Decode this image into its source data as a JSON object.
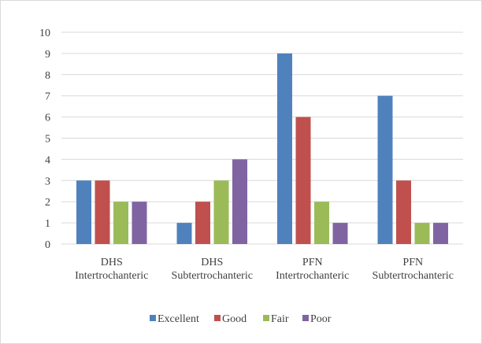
{
  "chart_data": {
    "type": "bar",
    "title": "",
    "xlabel": "",
    "ylabel": "",
    "ylim": [
      0,
      10
    ],
    "yticks": [
      0,
      1,
      2,
      3,
      4,
      5,
      6,
      7,
      8,
      9,
      10
    ],
    "grid": true,
    "legend_position": "bottom",
    "categories": [
      [
        "DHS",
        "Intertrochanteric"
      ],
      [
        "DHS",
        "Subtertrochanteric"
      ],
      [
        "PFN",
        "Intertrochanteric"
      ],
      [
        "PFN",
        "Subtertrochanteric"
      ]
    ],
    "series": [
      {
        "name": "Excellent",
        "color": "#4f81bd",
        "values": [
          3,
          1,
          9,
          7
        ]
      },
      {
        "name": "Good",
        "color": "#c0504d",
        "values": [
          3,
          2,
          6,
          3
        ]
      },
      {
        "name": "Fair",
        "color": "#9bbb59",
        "values": [
          2,
          3,
          2,
          1
        ]
      },
      {
        "name": "Poor",
        "color": "#8064a2",
        "values": [
          2,
          4,
          1,
          1
        ]
      }
    ]
  }
}
